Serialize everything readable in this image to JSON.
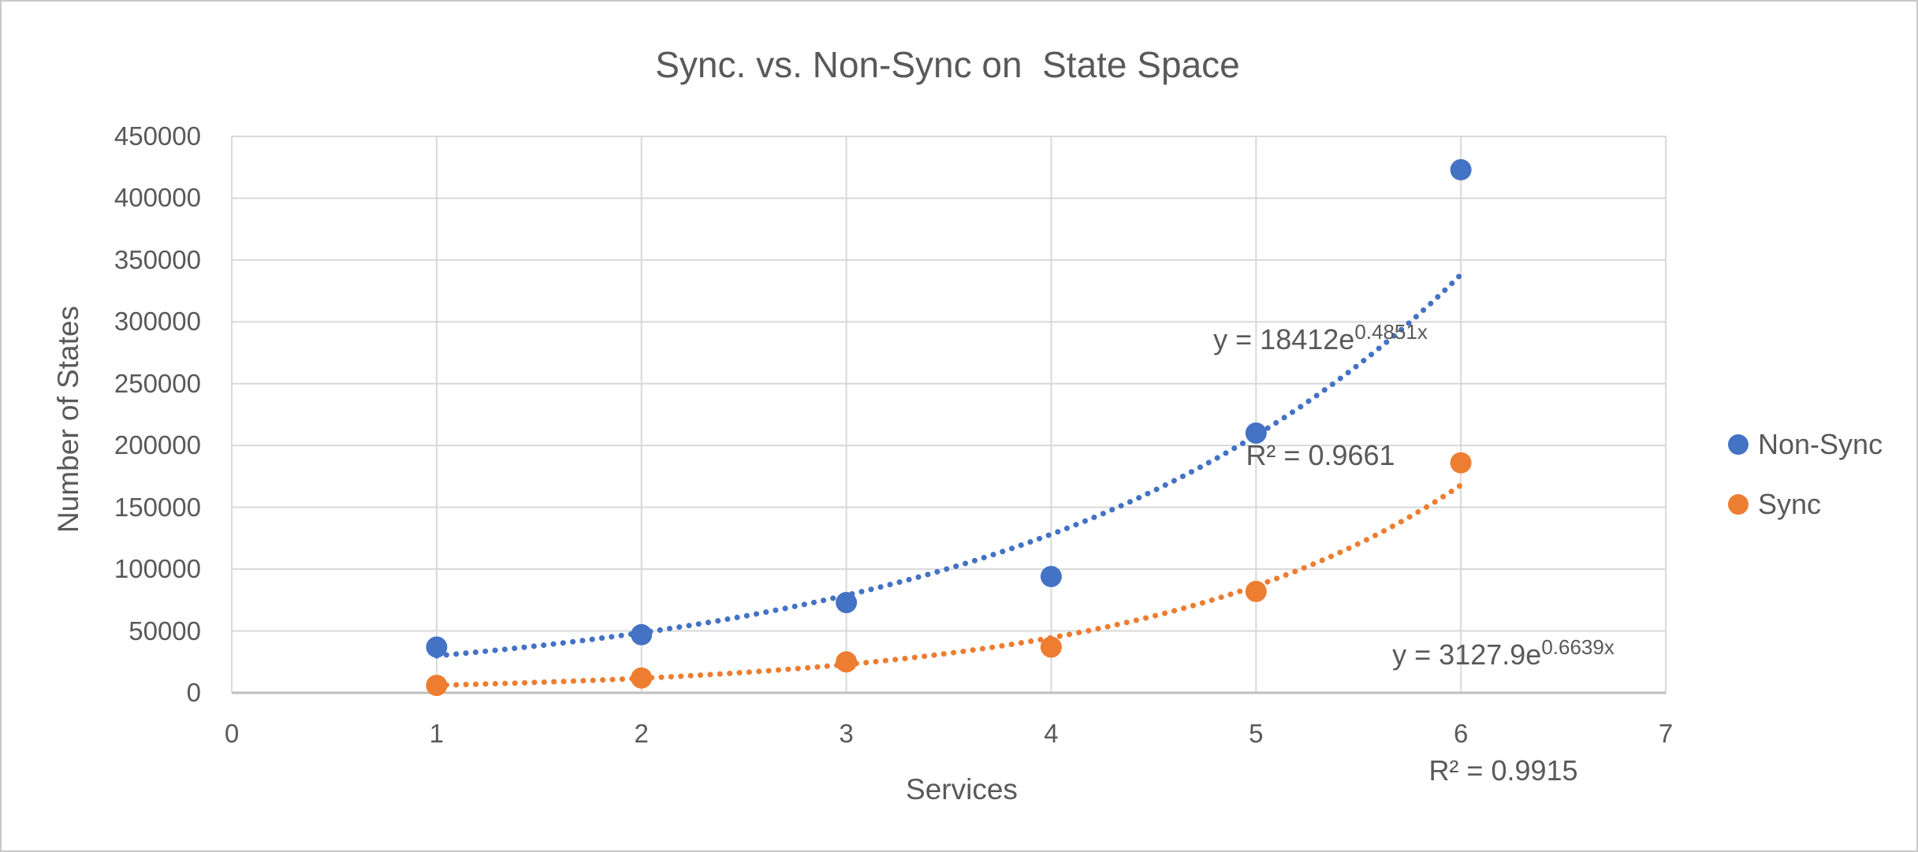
{
  "chart_data": {
    "type": "scatter",
    "title": "Sync. vs. Non-Sync on  State Space",
    "xlabel": "Services",
    "ylabel": "Number of States",
    "xlim": [
      0,
      7
    ],
    "ylim": [
      0,
      450000
    ],
    "x_ticks": [
      0,
      1,
      2,
      3,
      4,
      5,
      6,
      7
    ],
    "y_ticks": [
      0,
      50000,
      100000,
      150000,
      200000,
      250000,
      300000,
      350000,
      400000,
      450000
    ],
    "grid": true,
    "legend_position": "right",
    "series": [
      {
        "name": "Non-Sync",
        "color": "#4472C4",
        "x": [
          1,
          2,
          3,
          4,
          5,
          6
        ],
        "y": [
          37000,
          47000,
          73000,
          94000,
          210000,
          423000
        ],
        "trendline": {
          "type": "exponential",
          "a": 18412,
          "b": 0.4851,
          "style": "dotted"
        }
      },
      {
        "name": "Sync",
        "color": "#ED7D31",
        "x": [
          1,
          2,
          3,
          4,
          5,
          6
        ],
        "y": [
          6000,
          12000,
          25000,
          37000,
          82000,
          186000
        ],
        "trendline": {
          "type": "exponential",
          "a": 3127.9,
          "b": 0.6639,
          "style": "dotted"
        }
      }
    ],
    "annotations": [
      {
        "eq_base": "y = 18412e",
        "eq_exp": "0.4851x",
        "r2": "R² = 0.9661"
      },
      {
        "eq_base": "y = 3127.9e",
        "eq_exp": "0.6639x",
        "r2": "R² = 0.9915"
      }
    ]
  },
  "colors": {
    "text": "#595959",
    "gridline": "#D9D9D9",
    "axis_line": "#BFBFBF",
    "background": "#FFFFFF",
    "border": "#C8C8C8"
  }
}
